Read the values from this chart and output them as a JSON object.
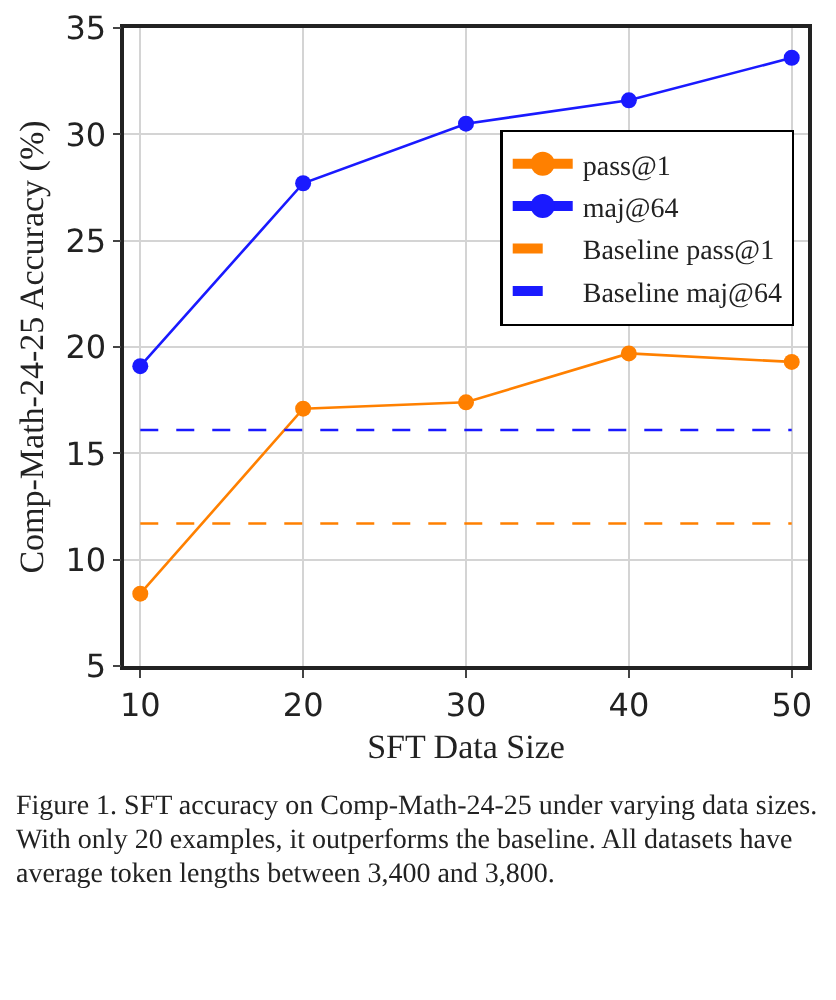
{
  "chart_data": {
    "type": "line",
    "xlabel": "SFT Data Size",
    "ylabel": "Comp-Math-24-25 Accuracy (%)",
    "x": [
      10,
      20,
      30,
      40,
      50
    ],
    "xlim": [
      9,
      51
    ],
    "xticks": [
      10,
      20,
      30,
      40,
      50
    ],
    "ylim": [
      5,
      35
    ],
    "yticks": [
      5,
      10,
      15,
      20,
      25,
      30,
      35
    ],
    "grid": true,
    "marker": "circle",
    "legend": "top right",
    "series": [
      {
        "name": "pass@1",
        "color": "#ff8000",
        "values": [
          8.4,
          17.1,
          17.4,
          19.7,
          19.3
        ]
      },
      {
        "name": "maj@64",
        "color": "#1a1aff",
        "values": [
          19.1,
          27.7,
          30.5,
          31.6,
          33.6
        ]
      }
    ],
    "ref_lines": [
      {
        "axis": "y",
        "value": 11.7,
        "label": "Baseline pass@1",
        "color": "#ff8000",
        "line_style": "dashed"
      },
      {
        "axis": "y",
        "value": 16.1,
        "label": "Baseline maj@64",
        "color": "#1a1aff",
        "line_style": "dashed"
      }
    ],
    "annotations": [
      "Figure 1. SFT accuracy on Comp-Math-24-25 under varying data sizes. With only 20 examples, it outperforms the baseline. All datasets have average token lengths between 3,400 and 3,800."
    ]
  }
}
